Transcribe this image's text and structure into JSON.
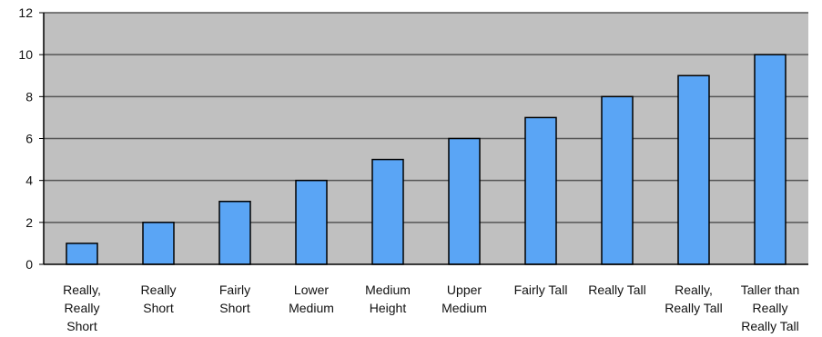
{
  "chart_data": {
    "type": "bar",
    "categories": [
      "Really, Really Short",
      "Really Short",
      "Fairly Short",
      "Lower Medium",
      "Medium Height",
      "Upper Medium",
      "Fairly Tall",
      "Really Tall",
      "Really, Really Tall",
      "Taller than Really Really Tall"
    ],
    "category_label_lines": [
      [
        "Really,",
        "Really",
        "Short"
      ],
      [
        "Really",
        "Short"
      ],
      [
        "Fairly",
        "Short"
      ],
      [
        "Lower",
        "Medium"
      ],
      [
        "Medium",
        "Height"
      ],
      [
        "Upper",
        "Medium"
      ],
      [
        "Fairly Tall"
      ],
      [
        "Really Tall"
      ],
      [
        "Really,",
        "Really Tall"
      ],
      [
        "Taller than",
        "Really",
        "Really Tall"
      ]
    ],
    "values": [
      1,
      2,
      3,
      4,
      5,
      6,
      7,
      8,
      9,
      10
    ],
    "title": "",
    "xlabel": "",
    "ylabel": "",
    "ylim": [
      0,
      12
    ],
    "yticks": [
      0,
      2,
      4,
      6,
      8,
      10,
      12
    ],
    "grid": true,
    "legend": "none",
    "colors": {
      "plot_background": "#c0c0c0",
      "bar_fill": "#5aa5f5",
      "bar_stroke": "#000000",
      "gridline": "#555555",
      "axis": "#000000"
    }
  }
}
